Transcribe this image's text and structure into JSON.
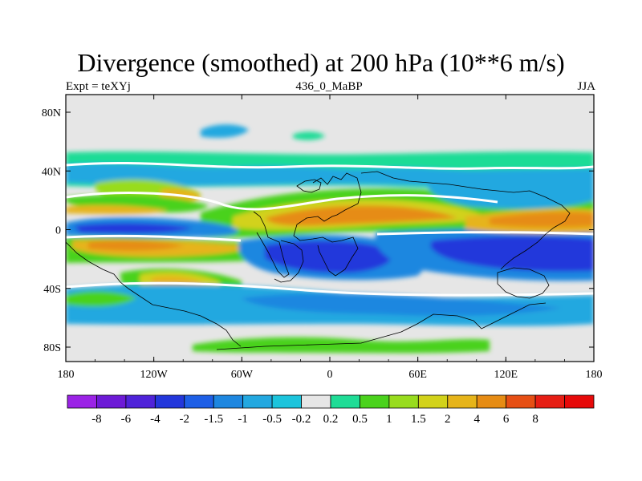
{
  "title": "Divergence (smoothed) at 200 hPa (10**6 m/s)",
  "subtitle_left": "Expt = teXYj",
  "subtitle_center": "436_0_MaBP",
  "subtitle_right": "JJA",
  "map": {
    "x_ticks": [
      "180",
      "120W",
      "60W",
      "0",
      "60E",
      "120E",
      "180"
    ],
    "y_ticks": [
      "80N",
      "40N",
      "0",
      "40S",
      "80S"
    ],
    "missing_color": "#e6e6e6"
  },
  "colorbar": {
    "colors": [
      "#9b23e6",
      "#6d1ad6",
      "#4f23d9",
      "#2337db",
      "#1e5fe6",
      "#1e87e0",
      "#23a8e0",
      "#1cc4dc",
      "#e6e6e6",
      "#1fdc96",
      "#4ad21c",
      "#98dc1e",
      "#d2d21a",
      "#e6b41a",
      "#e68c14",
      "#e64f14",
      "#e61e14",
      "#e60a0a"
    ],
    "labels": [
      "-8",
      "-6",
      "-4",
      "-2",
      "-1.5",
      "-1",
      "-0.5",
      "-0.2",
      "0.2",
      "0.5",
      "1",
      "1.5",
      "2",
      "4",
      "6",
      "8"
    ]
  },
  "legend_colors": {
    "blue": "#2337db",
    "mid_blue": "#1e87e0",
    "cyan": "#23a8e0",
    "light_cyan": "#1cc4dc",
    "green": "#1fdc96",
    "lime": "#4ad21c",
    "yellow_green": "#98dc1e",
    "yellow": "#d2d21a",
    "orange": "#e6b41a",
    "dark_orange": "#e68c14"
  }
}
